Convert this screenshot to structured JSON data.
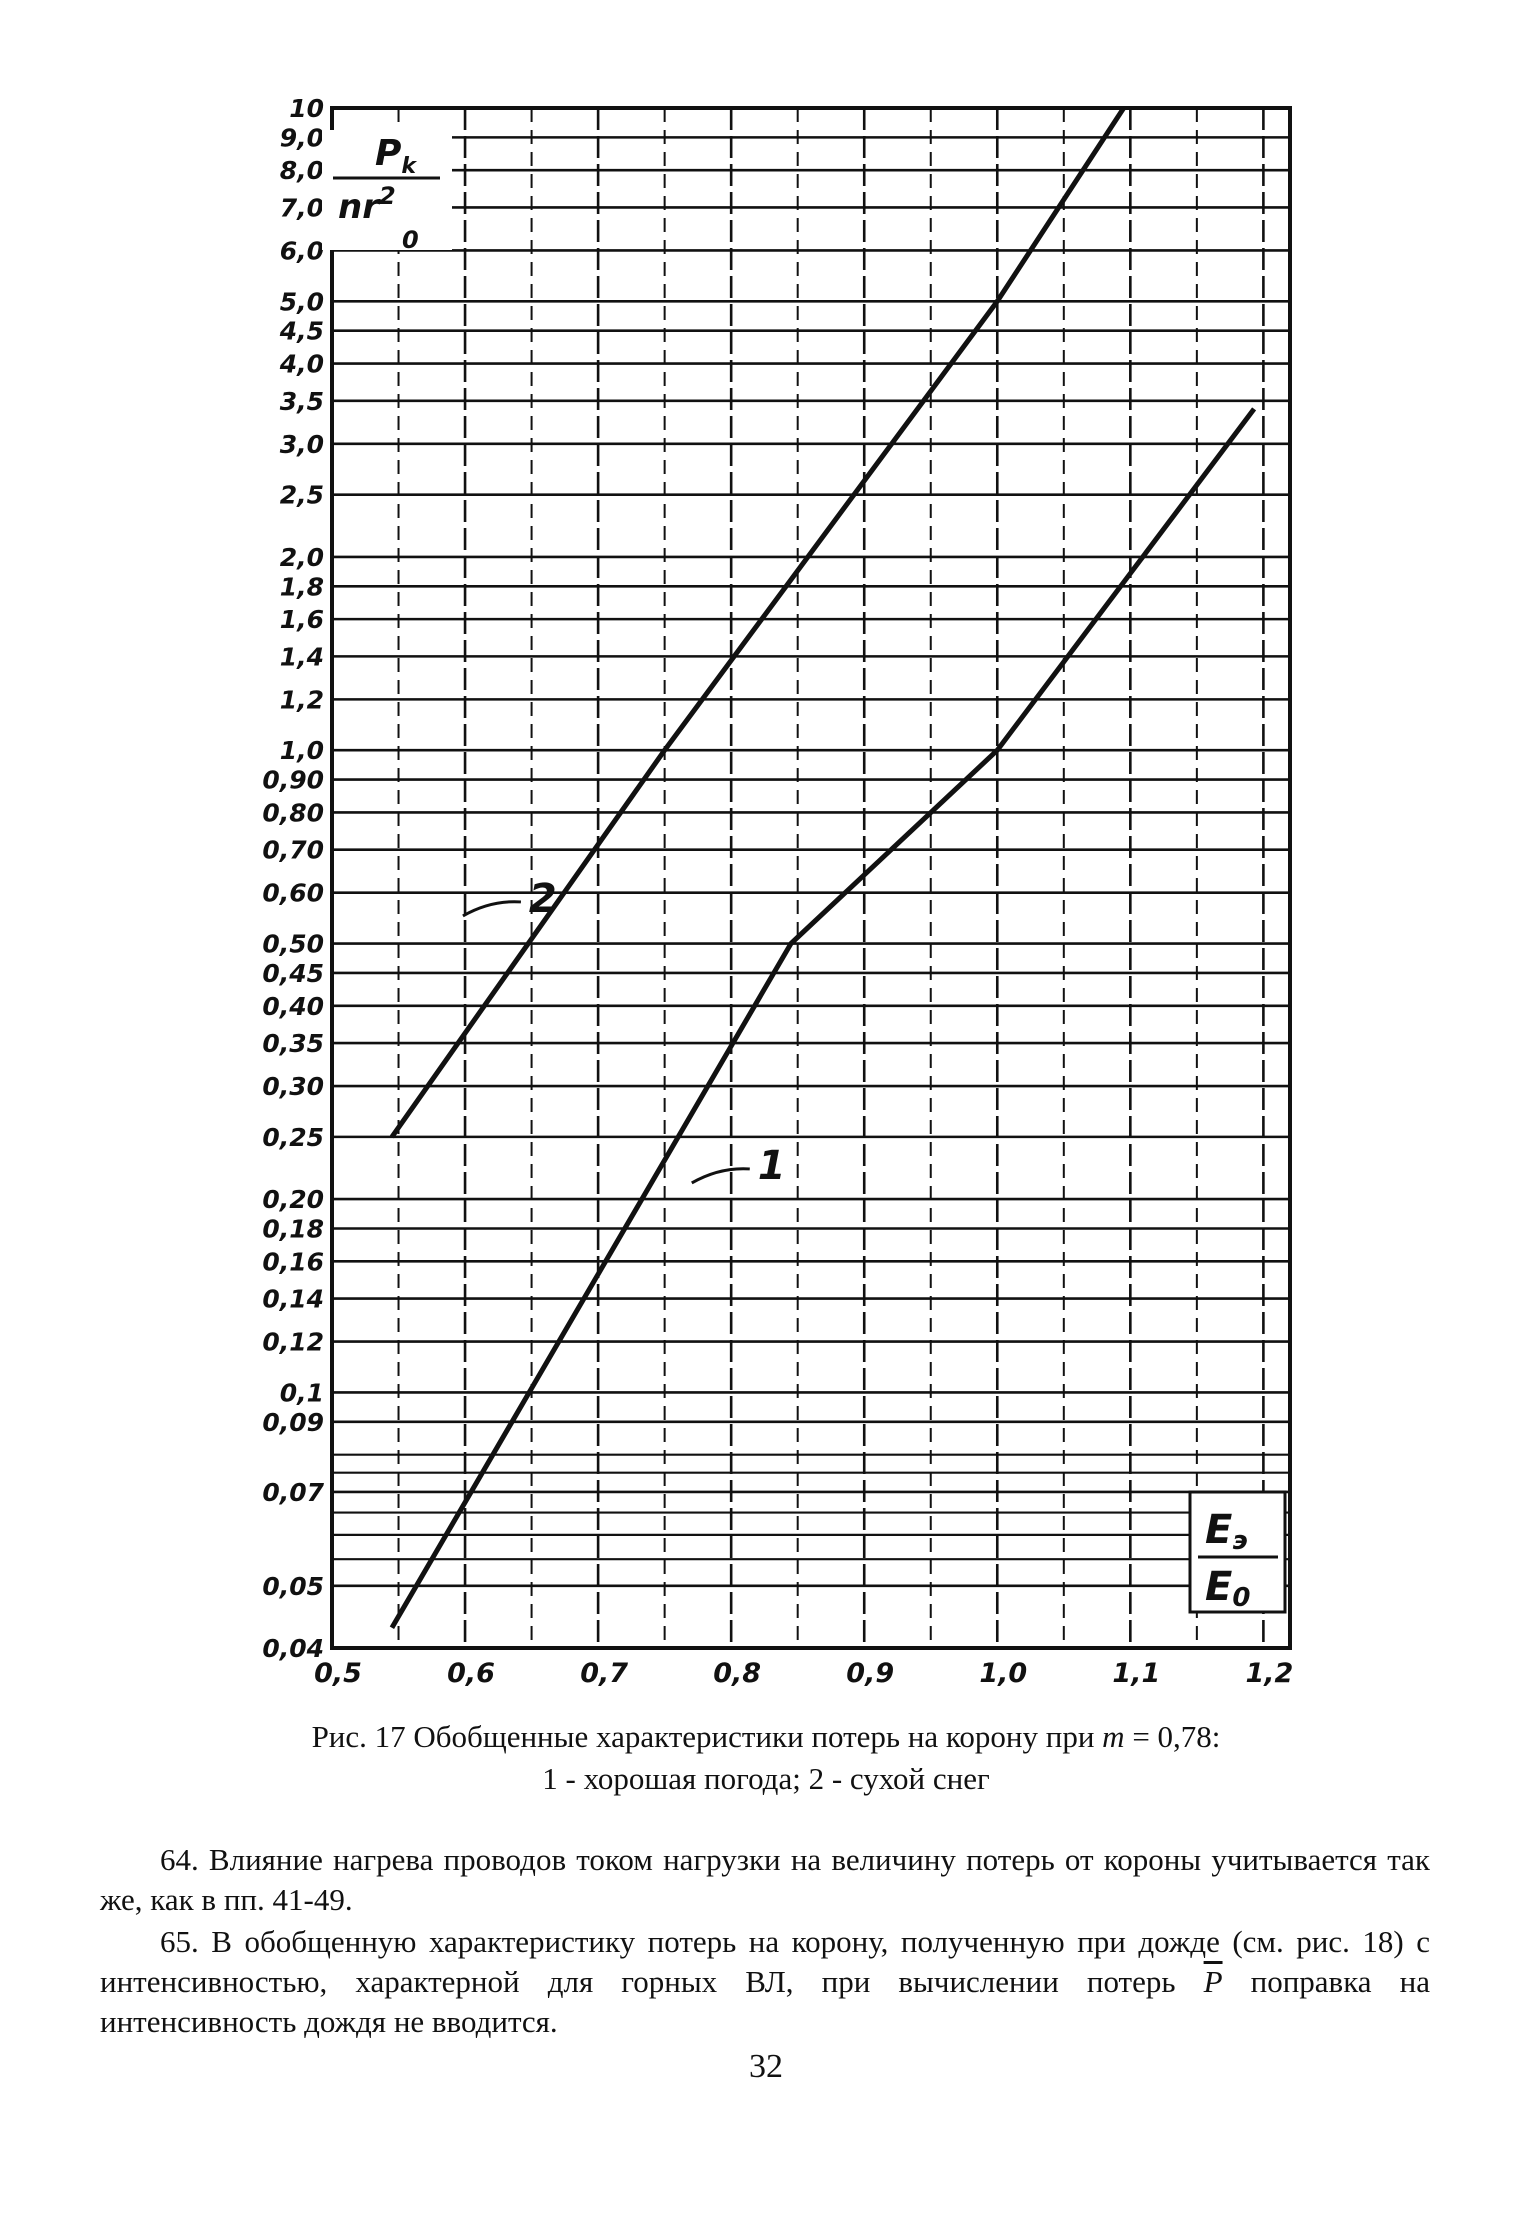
{
  "chart_data": {
    "type": "line",
    "x_scale": "linear",
    "y_scale": "log",
    "xlim": [
      0.5,
      1.22
    ],
    "ylim": [
      0.04,
      10.0
    ],
    "ylabel": {
      "top": "P",
      "sub": "k",
      "bottom": "nr",
      "exp": "2",
      "sub2": "0"
    },
    "xlabel": {
      "top": "E",
      "sub": "э",
      "bottom": "E",
      "sub2": "0"
    },
    "y_ticks": [
      {
        "v": 10.0,
        "label": "10"
      },
      {
        "v": 9.0,
        "label": "9,0"
      },
      {
        "v": 8.0,
        "label": "8,0"
      },
      {
        "v": 7.0,
        "label": "7,0"
      },
      {
        "v": 6.0,
        "label": "6,0"
      },
      {
        "v": 5.0,
        "label": "5,0"
      },
      {
        "v": 4.5,
        "label": "4,5"
      },
      {
        "v": 4.0,
        "label": "4,0"
      },
      {
        "v": 3.5,
        "label": "3,5"
      },
      {
        "v": 3.0,
        "label": "3,0"
      },
      {
        "v": 2.5,
        "label": "2,5"
      },
      {
        "v": 2.0,
        "label": "2,0"
      },
      {
        "v": 1.8,
        "label": "1,8"
      },
      {
        "v": 1.6,
        "label": "1,6"
      },
      {
        "v": 1.4,
        "label": "1,4"
      },
      {
        "v": 1.2,
        "label": "1,2"
      },
      {
        "v": 1.0,
        "label": "1,0"
      },
      {
        "v": 0.9,
        "label": "0,90"
      },
      {
        "v": 0.8,
        "label": "0,80"
      },
      {
        "v": 0.7,
        "label": "0,70"
      },
      {
        "v": 0.6,
        "label": "0,60"
      },
      {
        "v": 0.5,
        "label": "0,50"
      },
      {
        "v": 0.45,
        "label": "0,45"
      },
      {
        "v": 0.4,
        "label": "0,40"
      },
      {
        "v": 0.35,
        "label": "0,35"
      },
      {
        "v": 0.3,
        "label": "0,30"
      },
      {
        "v": 0.25,
        "label": "0,25"
      },
      {
        "v": 0.2,
        "label": "0,20"
      },
      {
        "v": 0.18,
        "label": "0,18"
      },
      {
        "v": 0.16,
        "label": "0,16"
      },
      {
        "v": 0.14,
        "label": "0,14"
      },
      {
        "v": 0.12,
        "label": "0,12"
      },
      {
        "v": 0.1,
        "label": "0,1"
      },
      {
        "v": 0.09,
        "label": "0,09"
      },
      {
        "v": 0.07,
        "label": "0,07"
      },
      {
        "v": 0.05,
        "label": "0,05"
      },
      {
        "v": 0.04,
        "label": "0,04"
      }
    ],
    "x_ticks": [
      {
        "v": 0.5,
        "label": "0,5"
      },
      {
        "v": 0.6,
        "label": "0,6"
      },
      {
        "v": 0.7,
        "label": "0,7"
      },
      {
        "v": 0.8,
        "label": "0,8"
      },
      {
        "v": 0.9,
        "label": "0,9"
      },
      {
        "v": 1.0,
        "label": "1,0"
      },
      {
        "v": 1.1,
        "label": "1,1"
      },
      {
        "v": 1.2,
        "label": "1,2"
      }
    ],
    "series": [
      {
        "name": "1",
        "color": "#111111",
        "points": [
          [
            0.545,
            0.043
          ],
          [
            0.845,
            0.5
          ],
          [
            1.0,
            1.0
          ],
          [
            1.193,
            3.4
          ]
        ],
        "label_at": [
          0.82,
          0.215
        ]
      },
      {
        "name": "2",
        "color": "#111111",
        "points": [
          [
            0.545,
            0.25
          ],
          [
            0.75,
            1.0
          ],
          [
            1.0,
            5.0
          ],
          [
            1.095,
            10.0
          ]
        ],
        "label_at": [
          0.648,
          0.56
        ]
      }
    ],
    "grid": true
  },
  "caption": {
    "line1_prefix": "Рис. 17 Обобщенные характеристики потерь на корону при ",
    "line1_var": "m",
    "line1_suffix": " = 0,78:",
    "line2": "1 - хорошая погода; 2 - сухой снег"
  },
  "para64": "64. Влияние нагрева проводов током нагрузки на величину потерь от короны учитывается так же, как в пп. 41-49.",
  "para65_main": "65. В обобщенную характеристику потерь на корону, полученную при дожде (см. рис. 18) с интенсивностью, характерной для горных ВЛ, при вычислении потерь ",
  "para65_symbol": "P",
  "para65_end": " поправка на интенсивность дождя не вводится.",
  "page_number": "32"
}
